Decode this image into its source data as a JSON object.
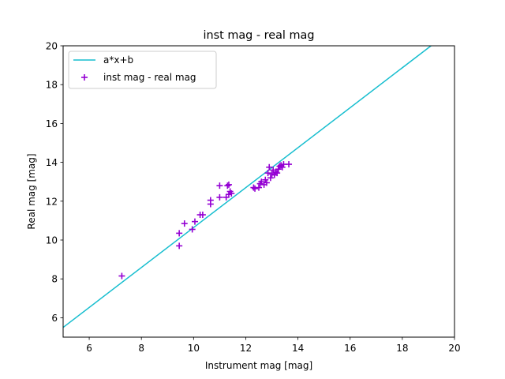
{
  "chart_data": {
    "type": "scatter",
    "title": "inst mag - real mag",
    "xlabel": "Instrument mag [mag]",
    "ylabel": "Real mag [mag]",
    "xlim": [
      5,
      20
    ],
    "ylim": [
      5,
      20
    ],
    "xticks": [
      6,
      8,
      10,
      12,
      14,
      16,
      18,
      20
    ],
    "yticks": [
      6,
      8,
      10,
      12,
      14,
      16,
      18,
      20
    ],
    "grid": false,
    "legend_position": "top-left",
    "fit_line": {
      "name": "a*x+b",
      "color": "#17becf",
      "points": [
        [
          5.0,
          5.5
        ],
        [
          19.1,
          20.0
        ]
      ]
    },
    "series": [
      {
        "name": "inst mag - real mag",
        "color": "#9400d3",
        "marker": "+",
        "points": [
          [
            7.25,
            8.15
          ],
          [
            9.45,
            9.7
          ],
          [
            9.45,
            10.35
          ],
          [
            9.65,
            10.85
          ],
          [
            9.95,
            10.55
          ],
          [
            10.05,
            10.95
          ],
          [
            10.25,
            11.3
          ],
          [
            10.35,
            11.3
          ],
          [
            10.65,
            11.85
          ],
          [
            10.65,
            12.05
          ],
          [
            11.0,
            12.2
          ],
          [
            11.0,
            12.8
          ],
          [
            11.25,
            12.2
          ],
          [
            11.3,
            12.8
          ],
          [
            11.35,
            12.85
          ],
          [
            11.35,
            12.35
          ],
          [
            11.4,
            12.5
          ],
          [
            11.45,
            12.4
          ],
          [
            12.3,
            12.7
          ],
          [
            12.35,
            12.65
          ],
          [
            12.5,
            12.7
          ],
          [
            12.55,
            12.9
          ],
          [
            12.6,
            13.0
          ],
          [
            12.7,
            12.85
          ],
          [
            12.75,
            13.1
          ],
          [
            12.8,
            12.95
          ],
          [
            12.85,
            13.45
          ],
          [
            12.9,
            13.75
          ],
          [
            12.95,
            13.2
          ],
          [
            13.0,
            13.4
          ],
          [
            13.05,
            13.6
          ],
          [
            13.1,
            13.35
          ],
          [
            13.15,
            13.5
          ],
          [
            13.2,
            13.45
          ],
          [
            13.25,
            13.65
          ],
          [
            13.3,
            13.8
          ],
          [
            13.35,
            13.85
          ],
          [
            13.4,
            13.75
          ],
          [
            13.45,
            13.9
          ],
          [
            13.65,
            13.9
          ]
        ]
      }
    ]
  }
}
